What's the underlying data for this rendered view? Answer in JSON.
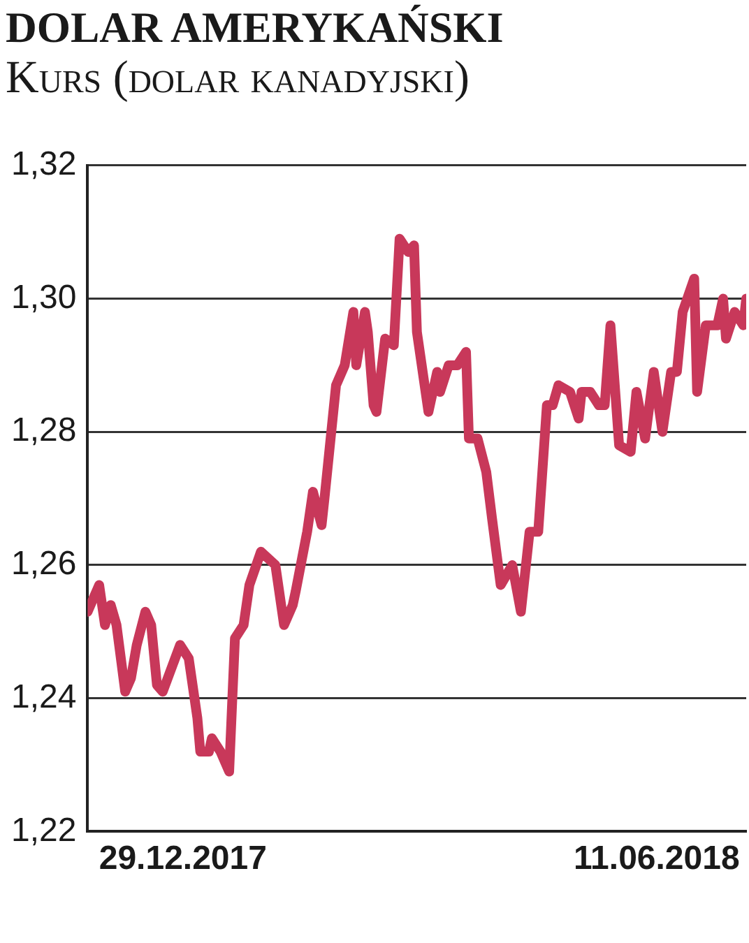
{
  "chart_data": {
    "type": "line",
    "title": "DOLAR AMERYKAŃSKI",
    "subtitle": "Kurs (dolar kanadyjski)",
    "x": [
      "2017-11-26",
      "2017-11-30",
      "2017-12-02",
      "2017-12-04",
      "2017-12-06",
      "2017-12-09",
      "2017-12-11",
      "2017-12-13",
      "2017-12-16",
      "2017-12-18",
      "2017-12-20",
      "2017-12-22",
      "2017-12-28",
      "2017-12-31",
      "2018-01-03",
      "2018-01-04",
      "2018-01-07",
      "2018-01-08",
      "2018-01-11",
      "2018-01-14",
      "2018-01-16",
      "2018-01-19",
      "2018-01-21",
      "2018-01-25",
      "2018-01-30",
      "2018-02-02",
      "2018-02-05",
      "2018-02-06",
      "2018-02-10",
      "2018-02-12",
      "2018-02-15",
      "2018-02-16",
      "2018-02-20",
      "2018-02-23",
      "2018-02-26",
      "2018-02-27",
      "2018-03-02",
      "2018-03-03",
      "2018-03-05",
      "2018-03-06",
      "2018-03-09",
      "2018-03-12",
      "2018-03-14",
      "2018-03-17",
      "2018-03-19",
      "2018-03-20",
      "2018-03-24",
      "2018-03-27",
      "2018-03-28",
      "2018-03-31",
      "2018-04-03",
      "2018-04-06",
      "2018-04-07",
      "2018-04-10",
      "2018-04-13",
      "2018-04-15",
      "2018-04-18",
      "2018-04-22",
      "2018-04-25",
      "2018-04-28",
      "2018-05-01",
      "2018-05-04",
      "2018-05-06",
      "2018-05-08",
      "2018-05-12",
      "2018-05-15",
      "2018-05-16",
      "2018-05-19",
      "2018-05-22",
      "2018-05-24",
      "2018-05-26",
      "2018-05-29",
      "2018-06-02",
      "2018-06-04",
      "2018-06-07",
      "2018-06-10",
      "2018-06-13",
      "2018-06-16",
      "2018-06-18",
      "2018-06-20",
      "2018-06-24",
      "2018-06-25",
      "2018-06-28",
      "2018-07-02",
      "2018-07-04",
      "2018-07-05",
      "2018-07-08",
      "2018-07-11",
      "2018-07-12"
    ],
    "series": [
      {
        "color": "#c8385a",
        "values": [
          1.253,
          1.257,
          1.251,
          1.254,
          1.251,
          1.241,
          1.243,
          1.248,
          1.253,
          1.251,
          1.242,
          1.241,
          1.248,
          1.246,
          1.237,
          1.232,
          1.232,
          1.234,
          1.232,
          1.229,
          1.249,
          1.251,
          1.257,
          1.262,
          1.26,
          1.251,
          1.254,
          1.256,
          1.265,
          1.271,
          1.266,
          1.27,
          1.287,
          1.29,
          1.298,
          1.29,
          1.298,
          1.295,
          1.284,
          1.283,
          1.294,
          1.293,
          1.309,
          1.307,
          1.308,
          1.295,
          1.283,
          1.289,
          1.286,
          1.29,
          1.29,
          1.292,
          1.279,
          1.279,
          1.274,
          1.267,
          1.257,
          1.26,
          1.253,
          1.265,
          1.265,
          1.284,
          1.284,
          1.287,
          1.286,
          1.282,
          1.286,
          1.286,
          1.284,
          1.284,
          1.296,
          1.278,
          1.277,
          1.286,
          1.279,
          1.289,
          1.28,
          1.289,
          1.289,
          1.298,
          1.303,
          1.286,
          1.296,
          1.296,
          1.3,
          1.294,
          1.298,
          1.296,
          1.3
        ]
      }
    ],
    "xlim": [
      "2017-11-26",
      "2018-07-12"
    ],
    "xticks": [
      {
        "value": "2017-12-29",
        "label": "29.12.2017"
      },
      {
        "value": "2018-06-11",
        "label": "11.06.2018"
      }
    ],
    "ylim": [
      1.22,
      1.32
    ],
    "yticks": [
      {
        "value": 1.22,
        "label": "1,22"
      },
      {
        "value": 1.24,
        "label": "1,24"
      },
      {
        "value": 1.26,
        "label": "1,26"
      },
      {
        "value": 1.28,
        "label": "1,28"
      },
      {
        "value": 1.3,
        "label": "1,30"
      },
      {
        "value": 1.32,
        "label": "1,32"
      }
    ],
    "grid": "y",
    "legend": false,
    "marker": "none",
    "line_style": "solid"
  }
}
